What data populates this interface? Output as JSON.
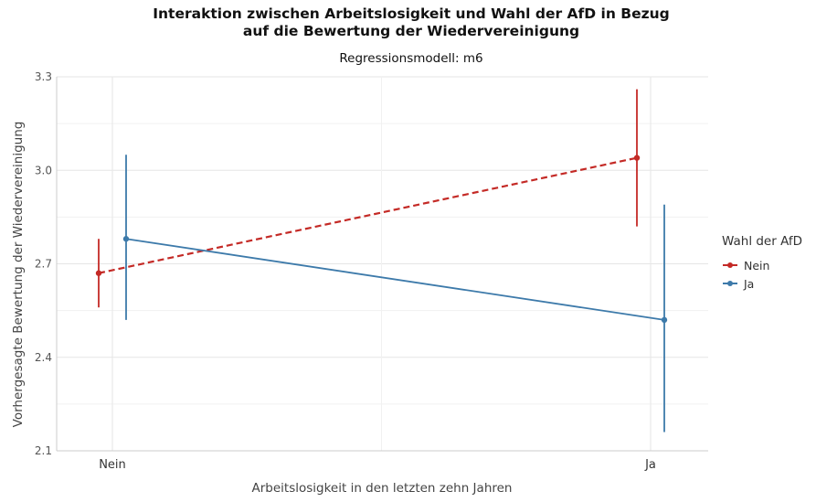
{
  "chart_data": {
    "type": "line",
    "title_line1": "Interaktion zwischen Arbeitslosigkeit und Wahl der AfD in Bezug",
    "title_line2": "auf die Bewertung der Wiedervereinigung",
    "subtitle": "Regressionsmodell: m6",
    "xlabel": "Arbeitslosigkeit in den letzten zehn Jahren",
    "ylabel": "Vorhergesagte Bewertung der Wiedervereinigung",
    "categories": [
      "Nein",
      "Ja"
    ],
    "ylim": [
      2.1,
      3.3
    ],
    "yticks": [
      "2.1",
      "2.4",
      "2.7",
      "3.0",
      "3.3"
    ],
    "grid": true,
    "legend": {
      "title": "Wahl der AfD",
      "position": "right"
    },
    "series": [
      {
        "name": "Nein",
        "color": "#c42a26",
        "linestyle": "dashed",
        "values": [
          2.67,
          3.04
        ],
        "lower": [
          2.56,
          2.82
        ],
        "upper": [
          2.78,
          3.26
        ]
      },
      {
        "name": "Ja",
        "color": "#3d7aaa",
        "linestyle": "solid",
        "values": [
          2.78,
          2.52
        ],
        "lower": [
          2.52,
          2.16
        ],
        "upper": [
          3.05,
          2.89
        ]
      }
    ]
  }
}
